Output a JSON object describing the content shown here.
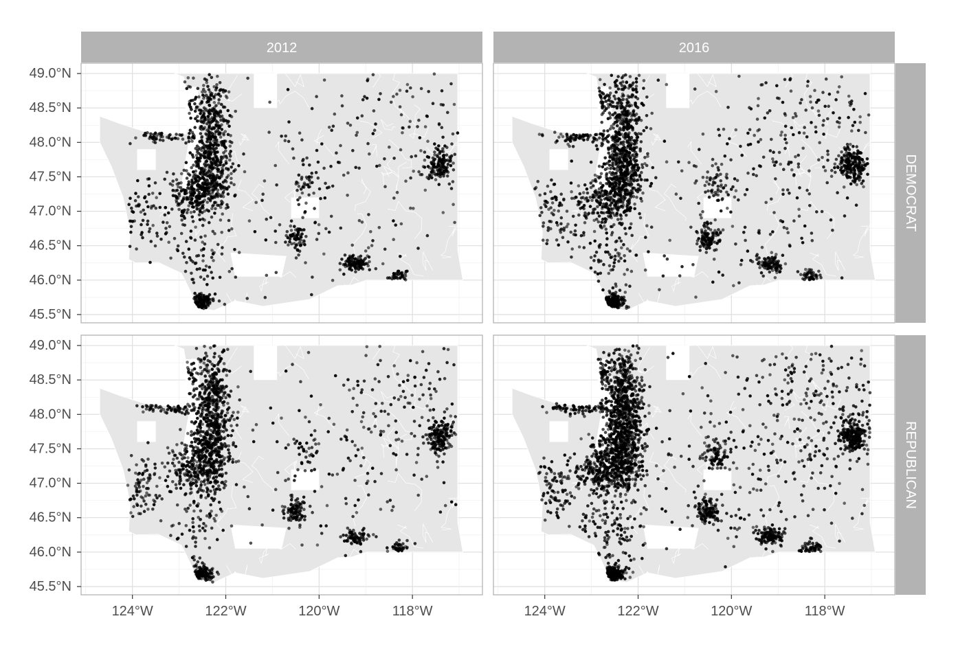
{
  "chart_data": {
    "type": "scatter",
    "facet_columns": [
      "2012",
      "2016"
    ],
    "facet_rows": [
      "DEMOCRAT",
      "REPUBLICAN"
    ],
    "x_ticks": [
      {
        "value": -124,
        "label": "124°W"
      },
      {
        "value": -122,
        "label": "122°W"
      },
      {
        "value": -120,
        "label": "120°W"
      },
      {
        "value": -118,
        "label": "118°W"
      }
    ],
    "y_ticks": [
      {
        "value": 49.0,
        "label": "49.0°N"
      },
      {
        "value": 48.5,
        "label": "48.5°N"
      },
      {
        "value": 48.0,
        "label": "48.0°N"
      },
      {
        "value": 47.5,
        "label": "47.5°N"
      },
      {
        "value": 47.0,
        "label": "47.0°N"
      },
      {
        "value": 46.5,
        "label": "46.5°N"
      },
      {
        "value": 46.0,
        "label": "46.0°N"
      },
      {
        "value": 45.5,
        "label": "45.5°N"
      }
    ],
    "xlim": [
      -125.1,
      -116.5
    ],
    "ylim": [
      45.38,
      49.15
    ],
    "grid": true,
    "point_color": "#000000",
    "map_fill": "#e6e6e6",
    "map_border": "#ffffff",
    "strip_fill": "#b3b3b3",
    "panel_border": "#b3b3b3",
    "gridline_color": "#dedede",
    "state_outline": [
      [
        -124.7,
        48.38
      ],
      [
        -124.3,
        48.28
      ],
      [
        -123.75,
        48.16
      ],
      [
        -123.2,
        48.12
      ],
      [
        -122.85,
        48.12
      ],
      [
        -122.78,
        48.5
      ],
      [
        -122.9,
        48.95
      ],
      [
        -123.1,
        49.0
      ],
      [
        -117.03,
        49.0
      ],
      [
        -117.03,
        46.43
      ],
      [
        -116.92,
        46.0
      ],
      [
        -118.98,
        46.0
      ],
      [
        -119.3,
        45.93
      ],
      [
        -119.6,
        45.92
      ],
      [
        -120.2,
        45.72
      ],
      [
        -121.2,
        45.62
      ],
      [
        -121.8,
        45.7
      ],
      [
        -122.25,
        45.56
      ],
      [
        -122.6,
        45.6
      ],
      [
        -122.8,
        45.9
      ],
      [
        -122.95,
        46.1
      ],
      [
        -123.45,
        46.26
      ],
      [
        -123.92,
        46.25
      ],
      [
        -124.08,
        46.3
      ],
      [
        -124.05,
        46.7
      ],
      [
        -124.12,
        46.95
      ],
      [
        -124.2,
        47.2
      ],
      [
        -124.45,
        47.65
      ],
      [
        -124.7,
        48.0
      ]
    ],
    "clusters": [
      {
        "lon": -122.32,
        "lat": 47.6,
        "spread_lon": 0.22,
        "spread_lat": 0.35,
        "weight": 10
      },
      {
        "lon": -122.3,
        "lat": 48.4,
        "spread_lon": 0.2,
        "spread_lat": 0.35,
        "weight": 6
      },
      {
        "lon": -122.7,
        "lat": 47.2,
        "spread_lon": 0.3,
        "spread_lat": 0.2,
        "weight": 5
      },
      {
        "lon": -122.55,
        "lat": 45.68,
        "spread_lon": 0.15,
        "spread_lat": 0.06,
        "weight": 4
      },
      {
        "lon": -117.4,
        "lat": 47.67,
        "spread_lon": 0.15,
        "spread_lat": 0.12,
        "weight": 4
      },
      {
        "lon": -123.2,
        "lat": 48.1,
        "spread_lon": 0.35,
        "spread_lat": 0.05,
        "weight": 2
      },
      {
        "lon": -120.5,
        "lat": 46.6,
        "spread_lon": 0.12,
        "spread_lat": 0.1,
        "weight": 2
      },
      {
        "lon": -119.2,
        "lat": 46.23,
        "spread_lon": 0.15,
        "spread_lat": 0.06,
        "weight": 2
      },
      {
        "lon": -118.3,
        "lat": 46.06,
        "spread_lon": 0.1,
        "spread_lat": 0.05,
        "weight": 1
      },
      {
        "lon": -120.3,
        "lat": 47.42,
        "spread_lon": 0.15,
        "spread_lat": 0.12,
        "weight": 1
      },
      {
        "lon": -122.9,
        "lat": 48.6,
        "spread_lon": 0.15,
        "spread_lat": 0.12,
        "weight": 2
      },
      {
        "lon": -123.8,
        "lat": 46.95,
        "spread_lon": 0.3,
        "spread_lat": 0.25,
        "weight": 2
      },
      {
        "lon": -122.6,
        "lat": 46.35,
        "spread_lon": 0.4,
        "spread_lat": 0.3,
        "weight": 2
      },
      {
        "lon": -119.5,
        "lat": 47.3,
        "spread_lon": 1.3,
        "spread_lat": 0.8,
        "weight": 4
      },
      {
        "lon": -118.0,
        "lat": 48.3,
        "spread_lon": 0.9,
        "spread_lat": 0.5,
        "weight": 3
      }
    ],
    "points_per_panel": [
      [
        1700,
        2100
      ],
      [
        1850,
        2700
      ]
    ]
  }
}
